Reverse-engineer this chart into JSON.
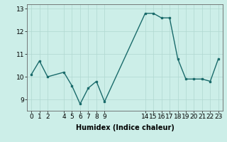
{
  "x": [
    0,
    1,
    2,
    4,
    5,
    6,
    7,
    8,
    9,
    14,
    15,
    16,
    17,
    18,
    19,
    20,
    21,
    22,
    23
  ],
  "y": [
    10.1,
    10.7,
    10.0,
    10.2,
    9.6,
    8.8,
    9.5,
    9.8,
    8.9,
    12.8,
    12.8,
    12.6,
    12.6,
    10.8,
    9.9,
    9.9,
    9.9,
    9.8,
    10.8
  ],
  "line_color": "#1a6b6b",
  "marker": "s",
  "marker_size": 2,
  "bg_color": "#cceee8",
  "grid_color": "#b0d8d0",
  "xlabel": "Humidex (Indice chaleur)",
  "xlim": [
    -0.5,
    23.5
  ],
  "ylim": [
    8.5,
    13.2
  ],
  "yticks": [
    9,
    10,
    11,
    12,
    13
  ],
  "xticks": [
    0,
    1,
    2,
    4,
    5,
    6,
    7,
    8,
    9,
    14,
    15,
    16,
    17,
    18,
    19,
    20,
    21,
    22,
    23
  ],
  "xtick_labels": [
    "0",
    "1",
    "2",
    "4",
    "5",
    "6",
    "7",
    "8",
    "9",
    "14",
    "15",
    "16",
    "17",
    "18",
    "19",
    "20",
    "21",
    "22",
    "23"
  ],
  "font_size": 6.5,
  "xlabel_fontsize": 7.0,
  "linewidth": 1.0
}
